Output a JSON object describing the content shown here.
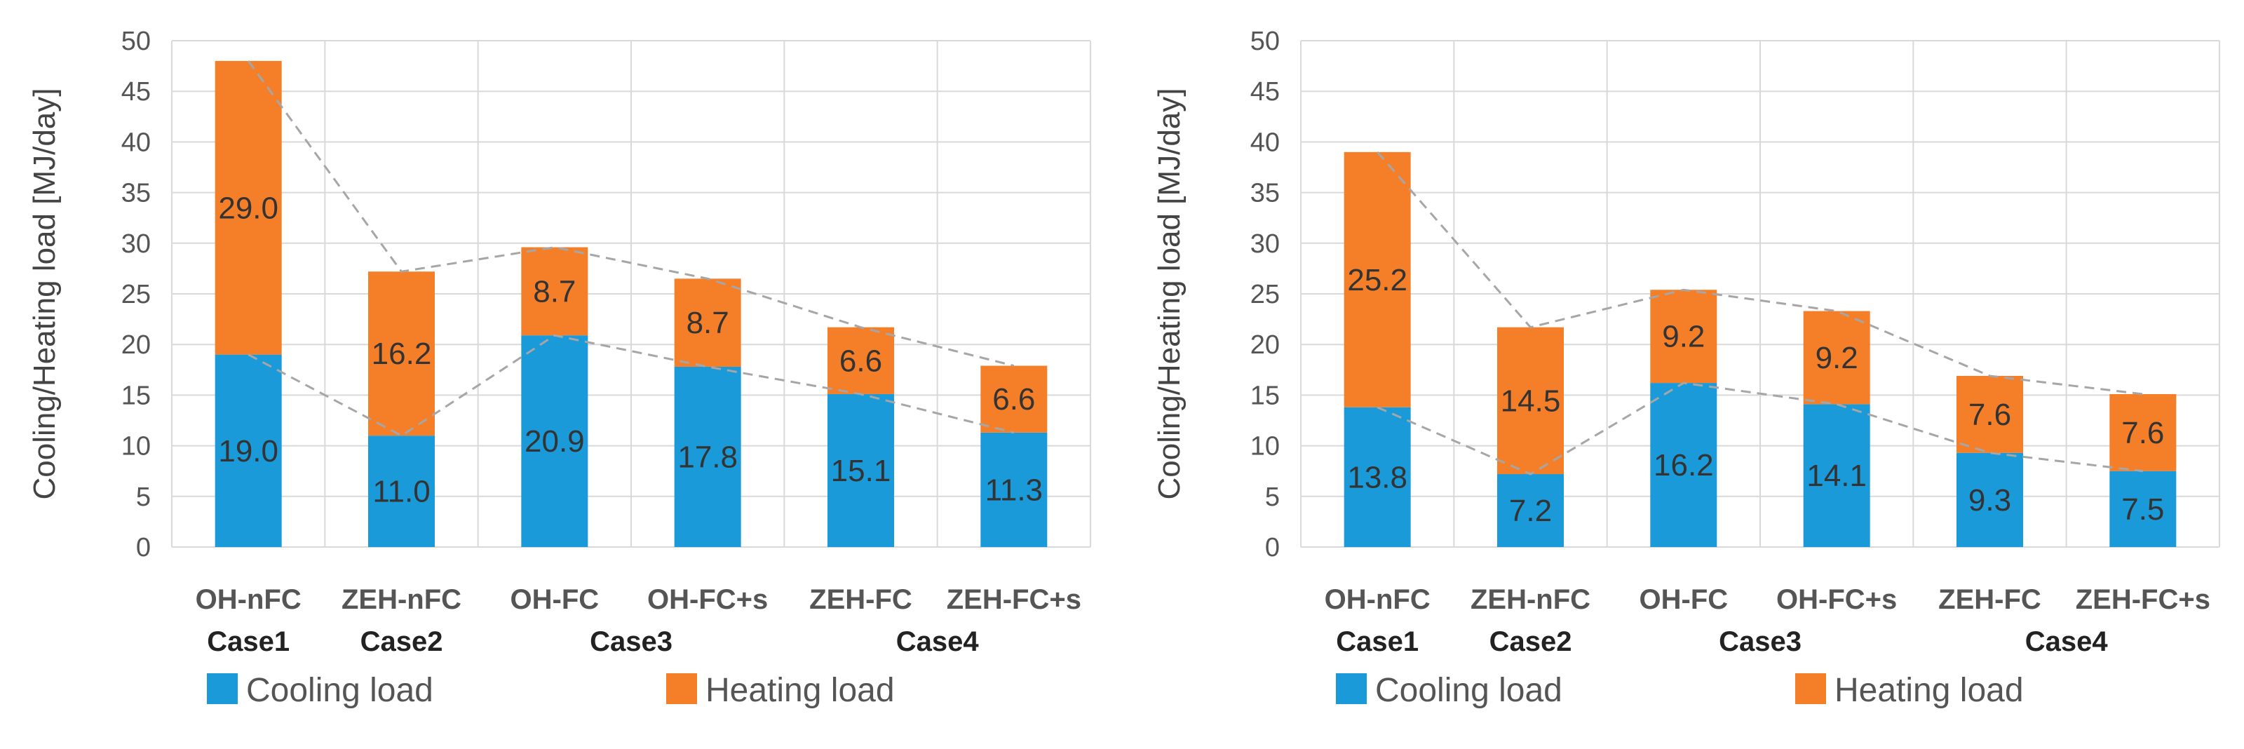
{
  "chart_data": [
    {
      "type": "bar",
      "stacked": true,
      "categories": [
        "OH-nFC",
        "ZEH-nFC",
        "OH-FC",
        "OH-FC+s",
        "ZEH-FC",
        "ZEH-FC+s"
      ],
      "groups": [
        {
          "label": "Case1",
          "categories": [
            "OH-nFC"
          ]
        },
        {
          "label": "Case2",
          "categories": [
            "ZEH-nFC"
          ]
        },
        {
          "label": "Case3",
          "categories": [
            "OH-FC",
            "OH-FC+s"
          ]
        },
        {
          "label": "Case4",
          "categories": [
            "ZEH-FC",
            "ZEH-FC+s"
          ]
        }
      ],
      "series": [
        {
          "name": "Cooling load",
          "color": "#1a9ad9",
          "values": [
            19.0,
            11.0,
            20.9,
            17.8,
            15.1,
            11.3
          ],
          "labels": [
            "19.0",
            "11.0",
            "20.9",
            "17.8",
            "15.1",
            "11.3"
          ]
        },
        {
          "name": "Heating load",
          "color": "#f57f29",
          "values": [
            29.0,
            16.2,
            8.7,
            8.7,
            6.6,
            6.6
          ],
          "labels": [
            "29.0",
            "16.2",
            "8.7",
            "8.7",
            "6.6",
            "6.6"
          ]
        }
      ],
      "ylabel": "Cooling/Heating load [MJ/day]",
      "ylim": [
        0,
        50
      ],
      "yticks": [
        "0",
        "5",
        "10",
        "15",
        "20",
        "25",
        "30",
        "35",
        "40",
        "45",
        "50"
      ],
      "legend": "bottom",
      "grid": true,
      "connector_lines": true
    },
    {
      "type": "bar",
      "stacked": true,
      "categories": [
        "OH-nFC",
        "ZEH-nFC",
        "OH-FC",
        "OH-FC+s",
        "ZEH-FC",
        "ZEH-FC+s"
      ],
      "groups": [
        {
          "label": "Case1",
          "categories": [
            "OH-nFC"
          ]
        },
        {
          "label": "Case2",
          "categories": [
            "ZEH-nFC"
          ]
        },
        {
          "label": "Case3",
          "categories": [
            "OH-FC",
            "OH-FC+s"
          ]
        },
        {
          "label": "Case4",
          "categories": [
            "ZEH-FC",
            "ZEH-FC+s"
          ]
        }
      ],
      "series": [
        {
          "name": "Cooling load",
          "color": "#1a9ad9",
          "values": [
            13.8,
            7.2,
            16.2,
            14.1,
            9.3,
            7.5
          ],
          "labels": [
            "13.8",
            "7.2",
            "16.2",
            "14.1",
            "9.3",
            "7.5"
          ]
        },
        {
          "name": "Heating load",
          "color": "#f57f29",
          "values": [
            25.2,
            14.5,
            9.2,
            9.2,
            7.6,
            7.6
          ],
          "labels": [
            "25.2",
            "14.5",
            "9.2",
            "9.2",
            "7.6",
            "7.6"
          ]
        }
      ],
      "ylabel": "Cooling/Heating load [MJ/day]",
      "ylim": [
        0,
        50
      ],
      "yticks": [
        "0",
        "5",
        "10",
        "15",
        "20",
        "25",
        "30",
        "35",
        "40",
        "45",
        "50"
      ],
      "legend": "bottom",
      "grid": true,
      "connector_lines": true
    }
  ]
}
